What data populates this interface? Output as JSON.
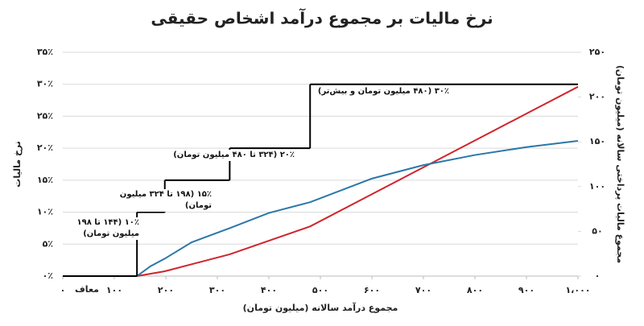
{
  "chart_data": {
    "type": "line",
    "title": "نرخ مالیات بر مجموع درآمد اشخاص حقیقی",
    "xlabel": "مجموع درآمد سالانه (میلیون تومان)",
    "ylabel": "نرخ مالیات",
    "y2label": "مجموع مالیات پرداختی سالانه (میلیون تومان)",
    "xlim": [
      0,
      1000
    ],
    "ylim": [
      0,
      35
    ],
    "y2lim": [
      0,
      250
    ],
    "grid": true,
    "xticks": [
      {
        "value": 0,
        "label": "۰"
      },
      {
        "value": 100,
        "label": "۱۰۰"
      },
      {
        "value": 200,
        "label": "۲۰۰"
      },
      {
        "value": 300,
        "label": "۳۰۰"
      },
      {
        "value": 400,
        "label": "۴۰۰"
      },
      {
        "value": 500,
        "label": "۵۰۰"
      },
      {
        "value": 600,
        "label": "۶۰۰"
      },
      {
        "value": 700,
        "label": "۷۰۰"
      },
      {
        "value": 800,
        "label": "۸۰۰"
      },
      {
        "value": 900,
        "label": "۹۰۰"
      },
      {
        "value": 1000,
        "label": "۱،۰۰۰"
      }
    ],
    "yticks": [
      {
        "value": 0,
        "label": "۰٪"
      },
      {
        "value": 5,
        "label": "۵٪"
      },
      {
        "value": 10,
        "label": "۱۰٪"
      },
      {
        "value": 15,
        "label": "۱۵٪"
      },
      {
        "value": 20,
        "label": "۲۰٪"
      },
      {
        "value": 25,
        "label": "۲۵٪"
      },
      {
        "value": 30,
        "label": "۳۰٪"
      },
      {
        "value": 35,
        "label": "۳۵٪"
      }
    ],
    "y2ticks": [
      {
        "value": 0,
        "label": "۰"
      },
      {
        "value": 50,
        "label": "۵۰"
      },
      {
        "value": 100,
        "label": "۱۰۰"
      },
      {
        "value": 150,
        "label": "۱۵۰"
      },
      {
        "value": 200,
        "label": "۲۰۰"
      },
      {
        "value": 250,
        "label": "۲۵۰"
      }
    ],
    "exempt_label": "معاف",
    "annotations": [
      "۱۰٪ (۱۴۴ تا ۱۹۸ میلیون تومان)",
      "۱۵٪ (۱۹۸ تا ۳۲۴ میلیون تومان)",
      "۲۰٪ (۳۲۴ تا ۴۸۰ میلیون تومان)",
      "۳۰٪ (۴۸۰ میلیون تومان و بیش‌تر)"
    ],
    "step_series": {
      "color": "#000000",
      "bins": [
        0,
        144,
        198,
        324,
        480,
        1000
      ],
      "values": [
        0,
        10,
        15,
        20,
        30
      ]
    },
    "x": [
      0,
      144,
      170,
      198,
      250,
      324,
      400,
      480,
      600,
      700,
      800,
      900,
      1000
    ],
    "series": [
      {
        "color": "#d0242c",
        "axis": "y2",
        "values": [
          0,
          0,
          2.6,
          5.4,
          13.2,
          24.3,
          39.5,
          55.5,
          91.5,
          121.5,
          151.5,
          181.5,
          211.5
        ]
      },
      {
        "color": "#2a77a8",
        "values": [
          0,
          0,
          1.53,
          2.73,
          5.28,
          7.5,
          9.875,
          11.56,
          15.25,
          17.36,
          18.94,
          20.17,
          21.15
        ]
      }
    ]
  }
}
